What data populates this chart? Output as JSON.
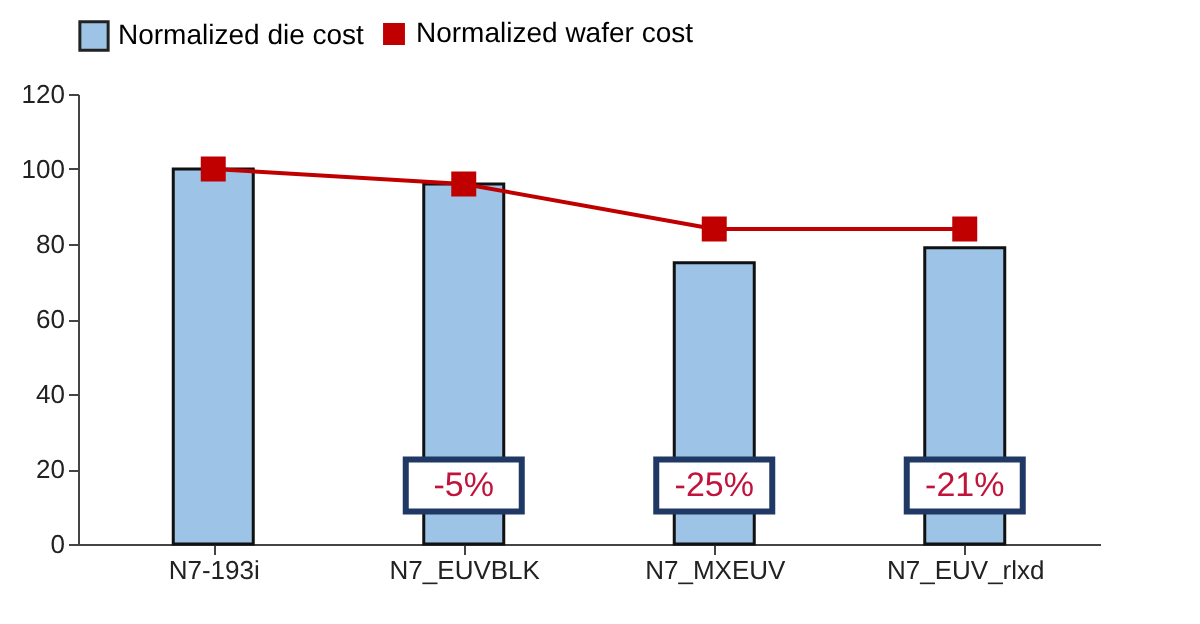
{
  "chart_data": {
    "type": "bar",
    "categories": [
      "N7-193i",
      "N7_EUVBLK",
      "N7_MXEUV",
      "N7_EUV_rlxd"
    ],
    "series": [
      {
        "name": "Normalized die cost",
        "type": "bar",
        "color": "#9dc3e6",
        "values": [
          100,
          96,
          75,
          79
        ]
      },
      {
        "name": "Normalized wafer cost",
        "type": "line",
        "color": "#c00000",
        "values": [
          100,
          96,
          84,
          84
        ],
        "marker": "square"
      }
    ],
    "annotations": [
      "-5%",
      "-25%",
      "-21%"
    ],
    "ylim": [
      0,
      120
    ],
    "yticks": [
      0,
      20,
      40,
      60,
      80,
      100,
      120
    ],
    "grid": false,
    "legend": "top"
  }
}
